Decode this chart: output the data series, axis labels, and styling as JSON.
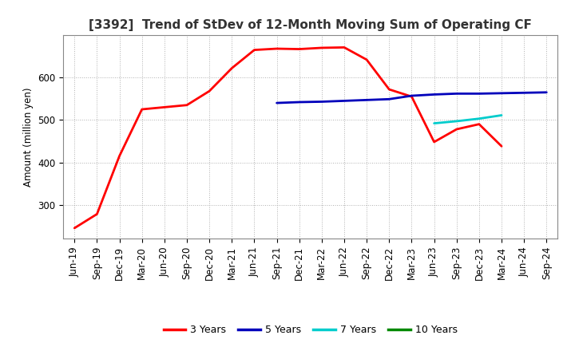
{
  "title": "[3392]  Trend of StDev of 12-Month Moving Sum of Operating CF",
  "ylabel": "Amount (million yen)",
  "ylim": [
    220,
    700
  ],
  "yticks": [
    300,
    400,
    500,
    600
  ],
  "background_color": "#ffffff",
  "grid_color": "#b0b0b0",
  "series": {
    "3 Years": {
      "color": "#ff0000",
      "x": [
        "Jun-19",
        "Sep-19",
        "Dec-19",
        "Mar-20",
        "Jun-20",
        "Sep-20",
        "Dec-20",
        "Mar-21",
        "Jun-21",
        "Sep-21",
        "Dec-21",
        "Mar-22",
        "Jun-22",
        "Sep-22",
        "Dec-22",
        "Mar-23",
        "Jun-23",
        "Sep-23",
        "Dec-23",
        "Mar-24"
      ],
      "y": [
        245,
        278,
        415,
        525,
        530,
        535,
        568,
        622,
        665,
        668,
        667,
        670,
        671,
        642,
        572,
        555,
        448,
        478,
        490,
        438
      ]
    },
    "5 Years": {
      "color": "#0000bb",
      "x": [
        "Sep-21",
        "Dec-21",
        "Mar-22",
        "Jun-22",
        "Sep-22",
        "Dec-22",
        "Mar-23",
        "Jun-23",
        "Sep-23",
        "Dec-23",
        "Mar-24",
        "Jun-24",
        "Sep-24"
      ],
      "y": [
        540,
        542,
        543,
        545,
        547,
        549,
        557,
        560,
        562,
        562,
        563,
        564,
        565
      ]
    },
    "7 Years": {
      "color": "#00cccc",
      "x": [
        "Jun-23",
        "Sep-23",
        "Dec-23",
        "Mar-24"
      ],
      "y": [
        492,
        497,
        503,
        511
      ]
    },
    "10 Years": {
      "color": "#008800",
      "x": [],
      "y": []
    }
  },
  "xtick_labels": [
    "Jun-19",
    "Sep-19",
    "Dec-19",
    "Mar-20",
    "Jun-20",
    "Sep-20",
    "Dec-20",
    "Mar-21",
    "Jun-21",
    "Sep-21",
    "Dec-21",
    "Mar-22",
    "Jun-22",
    "Sep-22",
    "Dec-22",
    "Mar-23",
    "Jun-23",
    "Sep-23",
    "Dec-23",
    "Mar-24",
    "Jun-24",
    "Sep-24"
  ],
  "legend": {
    "3 Years": "#ff0000",
    "5 Years": "#0000bb",
    "7 Years": "#00cccc",
    "10 Years": "#008800"
  },
  "linewidth": 2.0,
  "title_fontsize": 11,
  "axis_fontsize": 8.5,
  "tick_fontsize": 8.5,
  "legend_fontsize": 9
}
